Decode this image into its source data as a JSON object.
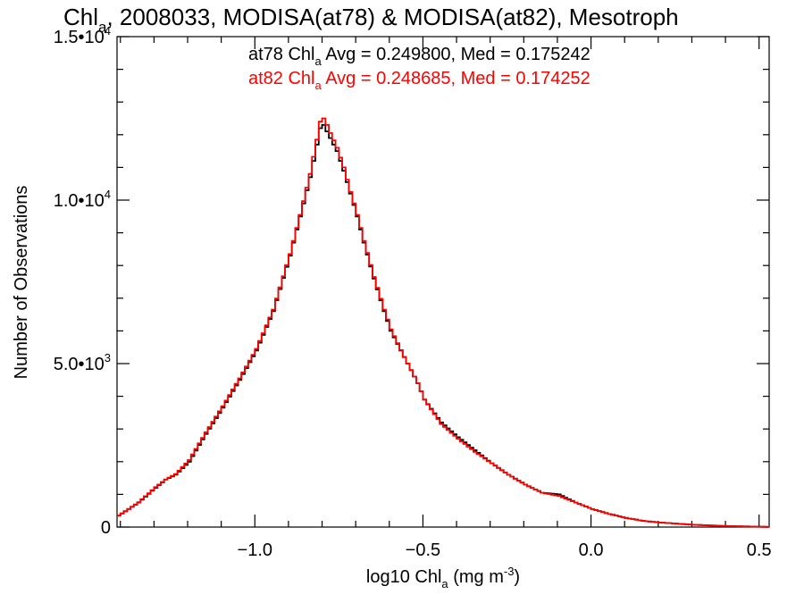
{
  "chart_data": {
    "type": "line",
    "title": "Chla, 2008033, MODISA(at78) & MODISA(at82), Mesotroph",
    "title_parts": {
      "main": "Chl",
      "sub": "a",
      "rest": ", 2008033, MODISA(at78) & MODISA(at82), Mesotroph"
    },
    "xlabel": "log10 Chla (mg m-3)",
    "xlabel_parts": {
      "main": "log10 Chl",
      "sub": "a",
      "mid": " (mg m",
      "sup": "-3",
      "end": ")"
    },
    "ylabel": "Number of Observations",
    "xlim": [
      -1.41,
      0.53
    ],
    "ylim": [
      0,
      15000
    ],
    "x_ticks": [
      {
        "value": -1.0,
        "label": "−1.0"
      },
      {
        "value": -0.5,
        "label": "−0.5"
      },
      {
        "value": 0.0,
        "label": "0.0"
      },
      {
        "value": 0.5,
        "label": "0.5"
      }
    ],
    "y_ticks": [
      {
        "value": 0,
        "label": "0",
        "exp": ""
      },
      {
        "value": 5000,
        "label": "5.0•10",
        "exp": "3"
      },
      {
        "value": 10000,
        "label": "1.0•10",
        "exp": "4"
      },
      {
        "value": 15000,
        "label": "1.5•10",
        "exp": "4"
      }
    ],
    "legend_placement": "top-center",
    "grid": false,
    "series": [
      {
        "name": "at78",
        "color": "#000000",
        "stats_label": {
          "pre": "at78 Chl",
          "sub": "a",
          "post": " Avg = 0.249800, Med = 0.175242"
        },
        "x": [
          -1.41,
          -1.35,
          -1.3,
          -1.27,
          -1.24,
          -1.2,
          -1.15,
          -1.1,
          -1.05,
          -1.0,
          -0.95,
          -0.9,
          -0.87,
          -0.84,
          -0.82,
          -0.81,
          -0.8,
          -0.79,
          -0.78,
          -0.76,
          -0.74,
          -0.72,
          -0.7,
          -0.68,
          -0.65,
          -0.62,
          -0.6,
          -0.56,
          -0.52,
          -0.5,
          -0.45,
          -0.4,
          -0.35,
          -0.3,
          -0.25,
          -0.2,
          -0.15,
          -0.1,
          -0.05,
          0.0,
          0.05,
          0.1,
          0.15,
          0.2,
          0.3,
          0.4,
          0.5,
          0.53
        ],
        "y": [
          350,
          750,
          1200,
          1450,
          1600,
          2000,
          2850,
          3650,
          4500,
          5400,
          6600,
          8300,
          9500,
          10700,
          11700,
          12200,
          12300,
          12100,
          11900,
          11500,
          10900,
          10200,
          9500,
          8700,
          7600,
          6600,
          6000,
          5200,
          4400,
          3900,
          3200,
          2750,
          2350,
          1950,
          1600,
          1300,
          1050,
          1000,
          750,
          550,
          400,
          280,
          190,
          140,
          70,
          30,
          10,
          5
        ]
      },
      {
        "name": "at82",
        "color": "#ff0000",
        "stats_label": {
          "pre": "at82 Chl",
          "sub": "a",
          "post": " Avg = 0.248685, Med = 0.174252"
        },
        "x": [
          -1.41,
          -1.35,
          -1.3,
          -1.27,
          -1.24,
          -1.2,
          -1.15,
          -1.1,
          -1.05,
          -1.0,
          -0.95,
          -0.9,
          -0.87,
          -0.84,
          -0.82,
          -0.81,
          -0.8,
          -0.79,
          -0.78,
          -0.76,
          -0.74,
          -0.72,
          -0.7,
          -0.68,
          -0.65,
          -0.62,
          -0.6,
          -0.56,
          -0.52,
          -0.5,
          -0.45,
          -0.4,
          -0.35,
          -0.3,
          -0.25,
          -0.2,
          -0.15,
          -0.1,
          -0.05,
          0.0,
          0.05,
          0.1,
          0.15,
          0.2,
          0.3,
          0.4,
          0.5,
          0.53
        ],
        "y": [
          350,
          760,
          1220,
          1460,
          1620,
          2050,
          2900,
          3700,
          4550,
          5450,
          6650,
          8350,
          9550,
          10800,
          11850,
          12400,
          12500,
          12300,
          12050,
          11600,
          11000,
          10250,
          9550,
          8750,
          7650,
          6650,
          6050,
          5200,
          4400,
          3900,
          3150,
          2700,
          2300,
          1950,
          1600,
          1300,
          1050,
          950,
          750,
          550,
          400,
          280,
          190,
          140,
          70,
          30,
          10,
          5
        ]
      }
    ]
  }
}
